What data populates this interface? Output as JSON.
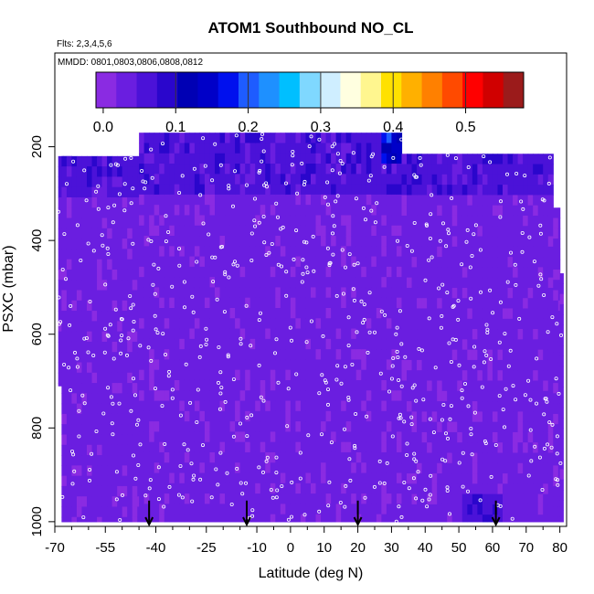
{
  "chart_data": {
    "type": "heatmap",
    "title": "ATOM1 Southbound NO_CL",
    "annotations": {
      "flights": "Flts: 2,3,4,5,6",
      "dates": "MMDD: 0801,0803,0806,0808,0812"
    },
    "xlabel": "Latitude (deg N)",
    "ylabel": "PSXC (mbar)",
    "xlim": [
      -70,
      82
    ],
    "ylim": [
      1010,
      0
    ],
    "y_reversed": true,
    "x_major_ticks": [
      -70,
      -55,
      -40,
      -25,
      -10,
      0,
      10,
      20,
      30,
      40,
      50,
      60,
      70,
      80
    ],
    "x_tick_labels": [
      "-70",
      "-55",
      "-40",
      "-25",
      "-10",
      "0",
      "10",
      "20",
      "30",
      "40",
      "50",
      "60",
      "70",
      "80"
    ],
    "y_ticks": [
      200,
      400,
      600,
      800,
      1000
    ],
    "y_tick_labels": [
      "200",
      "400",
      "600",
      "800",
      "1000"
    ],
    "colorbar": {
      "min": -0.01,
      "max": 0.58,
      "ticks": [
        0.0,
        0.1,
        0.2,
        0.3,
        0.4,
        0.5
      ],
      "tick_labels": [
        "0.0",
        "0.1",
        "0.2",
        "0.3",
        "0.4",
        "0.5"
      ],
      "colors": [
        "#8a2be2",
        "#6a1ee0",
        "#4b12d8",
        "#2a06cc",
        "#0000b4",
        "#0000c8",
        "#0010ee",
        "#1e5cff",
        "#1e90ff",
        "#00bfff",
        "#7fd8ff",
        "#cfeeff",
        "#ffffe0",
        "#fff68f",
        "#ffe100",
        "#ffb000",
        "#ff8000",
        "#ff4a00",
        "#ff0000",
        "#d00000",
        "#9b1b1b"
      ]
    },
    "profile_arrows_lat": [
      -42,
      -13,
      20,
      61
    ],
    "coverage": [
      {
        "lat": [
          -69,
          -65
        ],
        "p": [
          220,
          710
        ]
      },
      {
        "lat": [
          -68,
          -45
        ],
        "p": [
          220,
          1000
        ]
      },
      {
        "lat": [
          -45,
          33
        ],
        "p": [
          170,
          1000
        ]
      },
      {
        "lat": [
          33,
          75
        ],
        "p": [
          215,
          1000
        ]
      },
      {
        "lat": [
          75,
          78
        ],
        "p": [
          215,
          1000
        ]
      },
      {
        "lat": [
          78,
          80
        ],
        "p": [
          330,
          1000
        ]
      },
      {
        "lat": [
          80,
          81
        ],
        "p": [
          470,
          1000
        ]
      }
    ],
    "values_summary": "NO mostly 0.00–0.05 across the section; slightly higher 0.04–0.08 in the 170–300 mbar layer and at 50–62N near 1000 mbar; up to ~0.2 near 30N, 170–210 mbar"
  }
}
